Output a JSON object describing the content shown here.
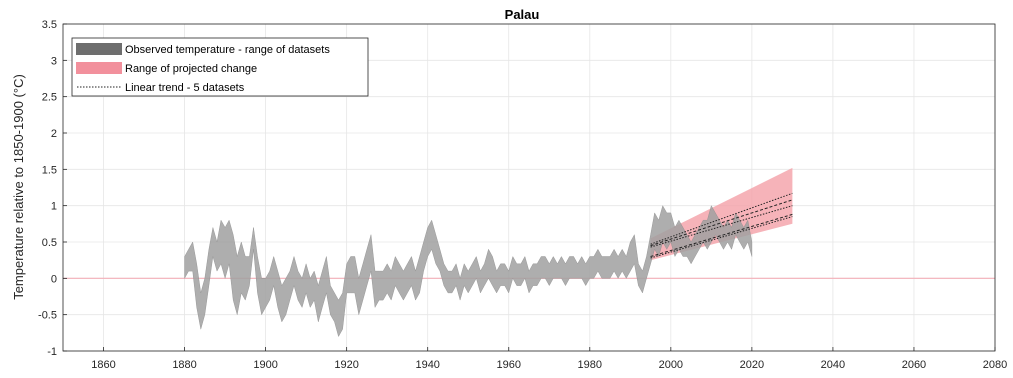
{
  "chart_data": {
    "type": "area",
    "title": "Palau",
    "xlabel": "",
    "ylabel": "Temperature relative to 1850-1900 (°C)",
    "xlim": [
      1850,
      2080
    ],
    "ylim": [
      -1,
      3.5
    ],
    "xticks": [
      1860,
      1880,
      1900,
      1920,
      1940,
      1960,
      1980,
      2000,
      2020,
      2040,
      2060,
      2080
    ],
    "yticks": [
      -1,
      -0.5,
      0,
      0.5,
      1,
      1.5,
      2,
      2.5,
      3,
      3.5
    ],
    "grid": true,
    "legend_placement": "top-left",
    "colors": {
      "observed": "#a0a0a0",
      "observed_legend": "#6e6e6e",
      "projected": "#f4a0a8",
      "projected_legend": "#f2909c",
      "zero_line": "#f4b0b8",
      "trend": "#222222",
      "grid": "#e6e6e6",
      "axis": "#262626"
    },
    "series": [
      {
        "name": "Observed temperature - range of datasets",
        "kind": "band",
        "x": [
          1880,
          1881,
          1882,
          1883,
          1884,
          1885,
          1886,
          1887,
          1888,
          1889,
          1890,
          1891,
          1892,
          1893,
          1894,
          1895,
          1896,
          1897,
          1898,
          1899,
          1900,
          1901,
          1902,
          1903,
          1904,
          1905,
          1906,
          1907,
          1908,
          1909,
          1910,
          1911,
          1912,
          1913,
          1914,
          1915,
          1916,
          1917,
          1918,
          1919,
          1920,
          1921,
          1922,
          1923,
          1924,
          1925,
          1926,
          1927,
          1928,
          1929,
          1930,
          1931,
          1932,
          1933,
          1934,
          1935,
          1936,
          1937,
          1938,
          1939,
          1940,
          1941,
          1942,
          1943,
          1944,
          1945,
          1946,
          1947,
          1948,
          1949,
          1950,
          1951,
          1952,
          1953,
          1954,
          1955,
          1956,
          1957,
          1958,
          1959,
          1960,
          1961,
          1962,
          1963,
          1964,
          1965,
          1966,
          1967,
          1968,
          1969,
          1970,
          1971,
          1972,
          1973,
          1974,
          1975,
          1976,
          1977,
          1978,
          1979,
          1980,
          1981,
          1982,
          1983,
          1984,
          1985,
          1986,
          1987,
          1988,
          1989,
          1990,
          1991,
          1992,
          1993,
          1994,
          1995,
          1996,
          1997,
          1998,
          1999,
          2000,
          2001,
          2002,
          2003,
          2004,
          2005,
          2006,
          2007,
          2008,
          2009,
          2010,
          2011,
          2012,
          2013,
          2014,
          2015,
          2016,
          2017,
          2018,
          2019,
          2020
        ],
        "lower": [
          0.0,
          0.1,
          0.1,
          -0.4,
          -0.7,
          -0.5,
          -0.1,
          0.3,
          0.1,
          0.2,
          0.0,
          0.2,
          -0.3,
          -0.5,
          -0.2,
          -0.3,
          -0.1,
          0.4,
          -0.2,
          -0.5,
          -0.4,
          -0.3,
          -0.1,
          -0.4,
          -0.6,
          -0.5,
          -0.3,
          -0.1,
          -0.3,
          -0.4,
          -0.2,
          -0.4,
          -0.3,
          -0.6,
          -0.4,
          -0.2,
          -0.5,
          -0.6,
          -0.8,
          -0.7,
          -0.2,
          -0.2,
          -0.2,
          -0.5,
          -0.3,
          -0.1,
          0.1,
          -0.4,
          -0.3,
          -0.3,
          -0.2,
          -0.3,
          -0.1,
          -0.2,
          -0.3,
          -0.2,
          -0.1,
          -0.3,
          -0.2,
          0.1,
          0.3,
          0.4,
          0.2,
          0.1,
          -0.1,
          -0.2,
          -0.2,
          -0.1,
          -0.3,
          -0.1,
          -0.2,
          -0.1,
          0.0,
          -0.2,
          -0.1,
          0.0,
          -0.1,
          -0.2,
          -0.1,
          -0.1,
          -0.2,
          0.0,
          -0.1,
          -0.1,
          0.0,
          -0.2,
          -0.1,
          -0.1,
          0.0,
          0.0,
          -0.1,
          0.0,
          0.0,
          0.0,
          -0.1,
          0.0,
          0.0,
          0.0,
          0.0,
          -0.1,
          0.0,
          0.0,
          0.1,
          0.0,
          0.0,
          0.0,
          0.1,
          0.0,
          0.1,
          0.0,
          0.1,
          0.2,
          -0.1,
          -0.2,
          0.0,
          0.2,
          0.4,
          0.3,
          0.5,
          0.4,
          0.5,
          0.3,
          0.4,
          0.3,
          0.3,
          0.2,
          0.3,
          0.4,
          0.5,
          0.4,
          0.5,
          0.6,
          0.5,
          0.4,
          0.5,
          0.4,
          0.6,
          0.5,
          0.4,
          0.5,
          0.3
        ],
        "upper": [
          0.3,
          0.4,
          0.5,
          0.2,
          -0.2,
          0.0,
          0.4,
          0.7,
          0.5,
          0.8,
          0.7,
          0.8,
          0.6,
          0.3,
          0.5,
          0.3,
          0.3,
          0.7,
          0.3,
          0.0,
          0.0,
          0.1,
          0.3,
          0.1,
          -0.1,
          0.0,
          0.1,
          0.3,
          0.1,
          0.0,
          0.2,
          0.0,
          0.1,
          -0.1,
          0.1,
          0.3,
          -0.1,
          -0.2,
          -0.3,
          -0.2,
          0.2,
          0.3,
          0.3,
          0.0,
          0.2,
          0.4,
          0.6,
          0.1,
          0.1,
          0.1,
          0.2,
          0.1,
          0.3,
          0.2,
          0.1,
          0.2,
          0.3,
          0.1,
          0.3,
          0.5,
          0.7,
          0.8,
          0.6,
          0.4,
          0.2,
          0.1,
          0.1,
          0.2,
          0.0,
          0.2,
          0.1,
          0.2,
          0.3,
          0.1,
          0.2,
          0.4,
          0.3,
          0.1,
          0.2,
          0.2,
          0.1,
          0.3,
          0.2,
          0.2,
          0.3,
          0.1,
          0.2,
          0.2,
          0.3,
          0.3,
          0.2,
          0.3,
          0.2,
          0.3,
          0.2,
          0.3,
          0.3,
          0.2,
          0.3,
          0.2,
          0.3,
          0.3,
          0.4,
          0.3,
          0.3,
          0.3,
          0.4,
          0.3,
          0.4,
          0.3,
          0.5,
          0.6,
          0.2,
          0.1,
          0.3,
          0.6,
          0.9,
          0.8,
          1.0,
          0.9,
          0.9,
          0.7,
          0.8,
          0.7,
          0.6,
          0.5,
          0.6,
          0.7,
          0.8,
          0.8,
          1.0,
          0.9,
          0.8,
          0.7,
          0.8,
          0.7,
          0.9,
          0.8,
          0.7,
          0.8,
          0.5
        ]
      },
      {
        "name": "Range of projected change",
        "kind": "band",
        "x": [
          1995,
          2030
        ],
        "lower": [
          0.25,
          0.75
        ],
        "upper": [
          0.55,
          1.52
        ]
      },
      {
        "name": "Linear trend - 5 datasets",
        "kind": "lines",
        "x": [
          1995,
          2030
        ],
        "lines": [
          [
            0.47,
            1.17
          ],
          [
            0.45,
            1.08
          ],
          [
            0.43,
            1.0
          ],
          [
            0.3,
            0.88
          ],
          [
            0.28,
            0.85
          ]
        ]
      }
    ],
    "reference_line": {
      "y": 0
    }
  }
}
